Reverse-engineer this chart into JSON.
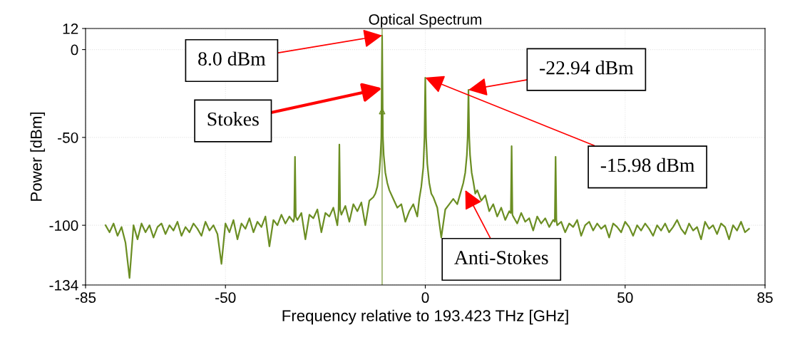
{
  "chart_data": {
    "type": "line",
    "title": "Optical Spectrum",
    "xlabel": "Frequency relative to 193.423 THz [GHz]",
    "ylabel": "Power [dBm]",
    "xlim": [
      -85,
      85
    ],
    "ylim": [
      -134,
      12
    ],
    "xticks": [
      -85,
      -50,
      0,
      50,
      85
    ],
    "yticks": [
      12,
      0,
      -50,
      -100,
      -134
    ],
    "grid": true,
    "legend": false,
    "series": [
      {
        "color": "#6b8e23",
        "marker": "none",
        "line_style": "solid",
        "x": [
          -80,
          -79,
          -78,
          -77,
          -76,
          -75,
          -74,
          -73,
          -72,
          -71,
          -70,
          -69,
          -68,
          -67,
          -66,
          -65,
          -64,
          -63,
          -62,
          -61,
          -60,
          -59,
          -58,
          -57,
          -56,
          -55,
          -54,
          -53,
          -52,
          -51,
          -50,
          -49,
          -48,
          -47,
          -46,
          -45,
          -44,
          -43,
          -42,
          -41,
          -40,
          -39,
          -38,
          -37,
          -36,
          -35,
          -34,
          -33,
          -32.8,
          -32.6,
          -32.4,
          -32,
          -31,
          -30,
          -29,
          -28,
          -27,
          -26,
          -25,
          -24,
          -23,
          -22,
          -21.7,
          -21.5,
          -21.3,
          -21,
          -20,
          -19,
          -18,
          -17,
          -16,
          -15,
          -14,
          -13,
          -12.5,
          -12,
          -11.5,
          -11.2,
          -11,
          -10.8,
          -10.6,
          -10.4,
          -10,
          -9.5,
          -9,
          -8,
          -7,
          -6,
          -5,
          -4,
          -3,
          -2,
          -1.5,
          -1,
          -0.5,
          -0.2,
          0,
          0.2,
          0.5,
          1,
          1.5,
          2,
          3,
          4,
          5,
          6,
          7,
          8,
          9,
          9.5,
          10,
          10.4,
          10.6,
          10.8,
          11,
          11.2,
          11.6,
          12,
          12.5,
          13,
          14,
          15,
          16,
          17,
          18,
          19,
          20,
          21,
          21.4,
          21.6,
          21.8,
          22,
          23,
          24,
          25,
          26,
          27,
          28,
          29,
          30,
          31,
          32,
          32.4,
          32.6,
          32.8,
          33,
          34,
          35,
          36,
          37,
          38,
          39,
          40,
          41,
          42,
          43,
          44,
          45,
          46,
          47,
          48,
          49,
          50,
          51,
          52,
          53,
          54,
          55,
          56,
          57,
          58,
          59,
          60,
          61,
          62,
          63,
          64,
          65,
          66,
          67,
          68,
          69,
          70,
          71,
          72,
          73,
          74,
          75,
          76,
          77,
          78,
          79,
          80,
          81
        ],
        "values": [
          -100,
          -104,
          -99,
          -106,
          -101,
          -110,
          -130,
          -100,
          -108,
          -99,
          -104,
          -100,
          -107,
          -101,
          -99,
          -105,
          -100,
          -103,
          -98,
          -106,
          -101,
          -104,
          -99,
          -102,
          -106,
          -98,
          -103,
          -100,
          -105,
          -122,
          -99,
          -104,
          -97,
          -108,
          -99,
          -102,
          -96,
          -104,
          -98,
          -101,
          -95,
          -112,
          -97,
          -100,
          -94,
          -99,
          -95,
          -98,
          -96,
          -61,
          -95,
          -97,
          -93,
          -108,
          -94,
          -96,
          -91,
          -104,
          -93,
          -95,
          -90,
          -100,
          -92,
          -54,
          -91,
          -94,
          -89,
          -98,
          -88,
          -92,
          -87,
          -100,
          -86,
          -84,
          -82,
          -78,
          -70,
          -60,
          -50,
          8,
          -50,
          -60,
          -70,
          -76,
          -80,
          -85,
          -90,
          -88,
          -98,
          -92,
          -88,
          -95,
          -85,
          -78,
          -67,
          -50,
          -15.98,
          -50,
          -65,
          -76,
          -82,
          -84,
          -90,
          -107,
          -91,
          -88,
          -85,
          -88,
          -80,
          -76,
          -70,
          -60,
          -50,
          -22.94,
          -50,
          -60,
          -70,
          -75,
          -82,
          -80,
          -86,
          -83,
          -92,
          -88,
          -95,
          -90,
          -97,
          -92,
          -93,
          -55,
          -94,
          -95,
          -99,
          -93,
          -98,
          -96,
          -103,
          -95,
          -99,
          -96,
          -101,
          -97,
          -98,
          -61,
          -97,
          -100,
          -98,
          -104,
          -99,
          -101,
          -97,
          -106,
          -100,
          -98,
          -103,
          -99,
          -102,
          -100,
          -107,
          -99,
          -101,
          -104,
          -98,
          -101,
          -106,
          -100,
          -103,
          -99,
          -102,
          -106,
          -100,
          -103,
          -99,
          -104,
          -101,
          -97,
          -102,
          -105,
          -99,
          -103,
          -101,
          -108,
          -98,
          -102,
          -100,
          -105,
          -99,
          -101,
          -108,
          -100,
          -103,
          -98,
          -104,
          -102
        ]
      },
      {
        "type": "scatter",
        "color": "#6b8e23",
        "marker": "triangle",
        "x": [
          -10.8
        ],
        "values": [
          -35
        ]
      }
    ],
    "ref_lines": [
      {
        "axis": "x",
        "value": -10.8,
        "color": "#6b8e23",
        "line_style": "solid"
      }
    ],
    "annotations": [
      {
        "text": "8.0 dBm",
        "x": -10.8,
        "y": 8
      },
      {
        "text": "Stokes",
        "x": -10.8,
        "y": -22
      },
      {
        "text": "-22.94 dBm",
        "x": 10.8,
        "y": -22.94
      },
      {
        "text": "-15.98 dBm",
        "x": 0,
        "y": -15.98
      },
      {
        "text": "Anti-Stokes",
        "x": 10,
        "y": -80
      }
    ]
  }
}
